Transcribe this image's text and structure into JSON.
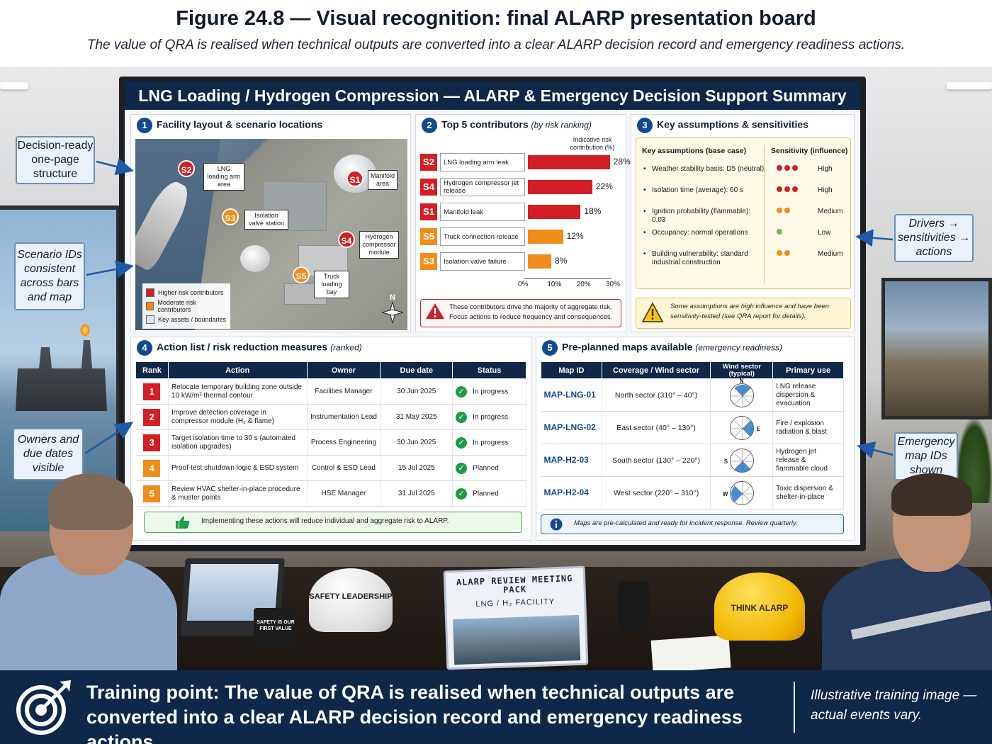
{
  "figure": {
    "title": "Figure 24.8 — Visual recognition: final ALARP presentation board",
    "subtitle": "The value of QRA is realised when technical outputs are converted into a clear ALARP decision record and emergency readiness actions."
  },
  "board": {
    "title": "LNG Loading / Hydrogen Compression — ALARP & Emergency Decision Support Summary"
  },
  "panel1": {
    "number": "1",
    "heading": "Facility layout & scenario locations",
    "markers": [
      {
        "id": "S2",
        "color": "red",
        "label": "LNG loading arm area"
      },
      {
        "id": "S1",
        "color": "red",
        "label": "Manifold area"
      },
      {
        "id": "S3",
        "color": "orange",
        "label": "Isolation valve station"
      },
      {
        "id": "S4",
        "color": "red",
        "label": "Hydrogen compressor module"
      },
      {
        "id": "S5",
        "color": "orange",
        "label": "Truck loading bay"
      }
    ],
    "legend": [
      {
        "label": "Higher risk contributors",
        "color": "#d11f25"
      },
      {
        "label": "Moderate risk contributors",
        "color": "#f08d1a"
      },
      {
        "label": "Key assets / boundaries",
        "color": "#e5e5e5"
      }
    ],
    "north": "N"
  },
  "panel2": {
    "number": "2",
    "heading": "Top 5 contributors",
    "heading_note": "(by risk ranking)",
    "axis_title": "Indicative risk contribution (%)",
    "note": "These contributors drive the majority of aggregate risk. Focus actions to reduce frequency and consequences."
  },
  "chart_data": {
    "type": "bar",
    "orientation": "horizontal",
    "categories": [
      "S2 LNG loading arm leak",
      "S4 Hydrogen compressor jet release",
      "S1 Manifold leak",
      "S5 Truck connection release",
      "S3 Isolation valve failure"
    ],
    "ids": [
      "S2",
      "S4",
      "S1",
      "S5",
      "S3"
    ],
    "labels": [
      "LNG loading arm leak",
      "Hydrogen compressor jet release",
      "Manifold leak",
      "Truck connection release",
      "Isolation valve failure"
    ],
    "values": [
      28,
      22,
      18,
      12,
      8
    ],
    "value_labels": [
      "28%",
      "22%",
      "18%",
      "12%",
      "8%"
    ],
    "colors": [
      "#d11f25",
      "#d11f25",
      "#d11f25",
      "#f08d1a",
      "#f08d1a"
    ],
    "xlim": [
      0,
      30
    ],
    "ticks": [
      "0%",
      "10%",
      "20%",
      "30%"
    ],
    "xlabel": "Indicative risk contribution (%)"
  },
  "panel3": {
    "number": "3",
    "heading": "Key assumptions & sensitivities",
    "col_assumptions": "Key assumptions (base case)",
    "col_sensitivity": "Sensitivity (influence)",
    "rows": [
      {
        "text": "Weather stability basis: D5 (neutral)",
        "dots": 3,
        "dot_color": "#d11f25",
        "level": "High"
      },
      {
        "text": "Isolation time (average): 60 s",
        "dots": 3,
        "dot_color": "#d11f25",
        "level": "High"
      },
      {
        "text": "Ignition probability (flammable): 0.03",
        "dots": 2,
        "dot_color": "#f08d1a",
        "level": "Medium"
      },
      {
        "text": "Occupancy: normal operations",
        "dots": 1,
        "dot_color": "#7ab648",
        "level": "Low"
      },
      {
        "text": "Building vulnerability: standard industrial construction",
        "dots": 2,
        "dot_color": "#f08d1a",
        "level": "Medium"
      }
    ],
    "note": "Some assumptions are high influence and have been sensitivity-tested (see QRA report for details)."
  },
  "panel4": {
    "number": "4",
    "heading": "Action list / risk reduction measures",
    "heading_note": "(ranked)",
    "columns": [
      "Rank",
      "Action",
      "Owner",
      "Due date",
      "Status"
    ],
    "rows": [
      {
        "rank": "1",
        "color": "#d11f25",
        "action": "Relocate temporary building zone outside 10 kW/m² thermal contour",
        "owner": "Facilities Manager",
        "due": "30 Jun 2025",
        "status": "In progress"
      },
      {
        "rank": "2",
        "color": "#d11f25",
        "action": "Improve detection coverage in compressor module (H₂ & flame)",
        "owner": "Instrumentation Lead",
        "due": "31 May 2025",
        "status": "In progress"
      },
      {
        "rank": "3",
        "color": "#d11f25",
        "action": "Target isolation time to 30 s (automated isolation upgrades)",
        "owner": "Process Engineering",
        "due": "30 Jun 2025",
        "status": "In progress"
      },
      {
        "rank": "4",
        "color": "#f08d1a",
        "action": "Proof-test shutdown logic & ESD system",
        "owner": "Control & ESD Lead",
        "due": "15 Jul 2025",
        "status": "Planned"
      },
      {
        "rank": "5",
        "color": "#f08d1a",
        "action": "Review HVAC shelter-in-place procedure & muster points",
        "owner": "HSE Manager",
        "due": "31 Jul 2025",
        "status": "Planned"
      }
    ],
    "note": "Implementing these actions will reduce individual and aggregate risk to ALARP."
  },
  "panel5": {
    "number": "5",
    "heading": "Pre-planned maps available",
    "heading_note": "(emergency readiness)",
    "columns": [
      "Map ID",
      "Coverage / Wind sector",
      "Wind sector (typical)",
      "Primary use"
    ],
    "rows": [
      {
        "id": "MAP-LNG-01",
        "coverage": "North sector (310° – 40°)",
        "dir": "N",
        "use": "LNG release dispersion & evacuation"
      },
      {
        "id": "MAP-LNG-02",
        "coverage": "East sector (40° – 130°)",
        "dir": "E",
        "use": "Fire / explosion radiation & blast"
      },
      {
        "id": "MAP-H2-03",
        "coverage": "South sector (130° – 220°)",
        "dir": "S",
        "use": "Hydrogen jet release & flammable cloud"
      },
      {
        "id": "MAP-H2-04",
        "coverage": "West sector (220° – 310°)",
        "dir": "W",
        "use": "Toxic dispersion & shelter-in-place"
      }
    ],
    "note": "Maps are pre-calculated and ready for incident response. Review quarterly."
  },
  "side_labels": {
    "decision_ready": "Decision-ready one-page structure",
    "scenario_ids": "Scenario IDs consistent across bars and map",
    "owners": "Owners and due dates visible",
    "drivers": "Drivers → sensitivities → actions",
    "emergency": "Emergency map IDs shown"
  },
  "props": {
    "mug": "SAFETY IS OUR FIRST VALUE",
    "white_helmet": "SAFETY LEADERSHIP",
    "yellow_helmet": "THINK ALARP",
    "binder_title": "ALARP REVIEW MEETING PACK",
    "binder_sub": "LNG / H₂ FACILITY"
  },
  "footer": {
    "training_point": "Training point: The value of QRA is realised when technical outputs are converted into a clear ALARP decision record and emergency readiness actions.",
    "disclaimer": "Illustrative training image — actual events vary."
  }
}
